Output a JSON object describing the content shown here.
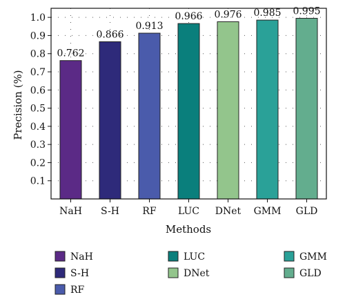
{
  "chart_data": {
    "type": "bar",
    "categories": [
      "NaH",
      "S-H",
      "RF",
      "LUC",
      "DNet",
      "GMM",
      "GLD"
    ],
    "values": [
      0.762,
      0.866,
      0.913,
      0.966,
      0.976,
      0.985,
      0.995
    ],
    "data_labels": [
      "0.762",
      "0.866",
      "0.913",
      "0.966",
      "0.976",
      "0.985",
      "0.995"
    ],
    "colors": [
      "#5b2a86",
      "#2e2a7a",
      "#4a5bab",
      "#0a7f7c",
      "#93c58c",
      "#2aa198",
      "#63ad8e"
    ],
    "xlabel": "Methods",
    "ylabel": "Precision (%)",
    "ylim": [
      0,
      1.05
    ],
    "yticks": [
      0.1,
      0.2,
      0.3,
      0.4,
      0.5,
      0.6,
      0.7,
      0.8,
      0.9,
      1.0
    ],
    "ytick_labels": [
      "0.1",
      "0.2",
      "0.3",
      "0.4",
      "0.5",
      "0.6",
      "0.7",
      "0.8",
      "0.9",
      "1.0"
    ],
    "grid": true,
    "legend": {
      "placement": "below",
      "entries": [
        "NaH",
        "S-H",
        "RF",
        "LUC",
        "DNet",
        "GMM",
        "GLD"
      ]
    }
  }
}
